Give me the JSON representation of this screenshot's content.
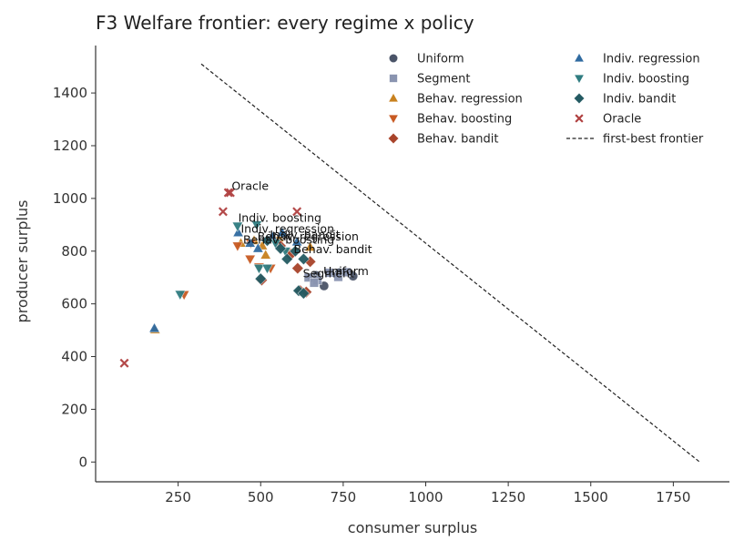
{
  "chart_data": {
    "type": "scatter",
    "title": "F3  Welfare frontier: every regime x policy",
    "xlabel": "consumer surplus",
    "ylabel": "producer surplus",
    "xlim": [
      0,
      1920
    ],
    "ylim": [
      -75,
      1580
    ],
    "xticks": [
      250,
      500,
      750,
      1000,
      1250,
      1500,
      1750
    ],
    "yticks": [
      0,
      200,
      400,
      600,
      800,
      1000,
      1200,
      1400
    ],
    "grid": false,
    "legend_position": "top-right",
    "series": [
      {
        "name": "Uniform",
        "marker": "circle",
        "color": "#4a5468",
        "points": [
          [
            692,
            668
          ],
          [
            738,
            718
          ],
          [
            780,
            705
          ],
          [
            668,
            708
          ],
          [
            655,
            700
          ]
        ]
      },
      {
        "name": "Segment",
        "marker": "square",
        "color": "#8a94b0",
        "points": [
          [
            645,
            700
          ],
          [
            672,
            690
          ],
          [
            708,
            718
          ],
          [
            735,
            702
          ],
          [
            760,
            720
          ],
          [
            662,
            680
          ]
        ]
      },
      {
        "name": "Behav. regression",
        "marker": "triangle-up",
        "color": "#c8811e",
        "points": [
          [
            180,
            502
          ],
          [
            440,
            830
          ],
          [
            480,
            840
          ],
          [
            505,
            820
          ],
          [
            515,
            785
          ],
          [
            650,
            815
          ],
          [
            555,
            850
          ]
        ]
      },
      {
        "name": "Behav. boosting",
        "marker": "triangle-down",
        "color": "#c85a22",
        "points": [
          [
            268,
            635
          ],
          [
            430,
            820
          ],
          [
            468,
            770
          ],
          [
            495,
            740
          ],
          [
            530,
            735
          ],
          [
            470,
            830
          ],
          [
            585,
            795
          ]
        ]
      },
      {
        "name": "Behav. bandit",
        "marker": "diamond",
        "color": "#a8432a",
        "points": [
          [
            503,
            690
          ],
          [
            612,
            735
          ],
          [
            620,
            650
          ],
          [
            638,
            645
          ],
          [
            650,
            760
          ],
          [
            560,
            820
          ],
          [
            590,
            785
          ]
        ]
      },
      {
        "name": "Indiv. regression",
        "marker": "triangle-up",
        "color": "#2f6aa0",
        "points": [
          [
            178,
            507
          ],
          [
            432,
            870
          ],
          [
            468,
            830
          ],
          [
            492,
            810
          ],
          [
            535,
            855
          ],
          [
            565,
            870
          ],
          [
            610,
            835
          ]
        ]
      },
      {
        "name": "Indiv. boosting",
        "marker": "triangle-down",
        "color": "#2f7c80",
        "points": [
          [
            256,
            636
          ],
          [
            430,
            895
          ],
          [
            495,
            735
          ],
          [
            520,
            735
          ],
          [
            488,
            900
          ],
          [
            545,
            830
          ],
          [
            575,
            800
          ]
        ]
      },
      {
        "name": "Indiv. bandit",
        "marker": "diamond",
        "color": "#235a62",
        "points": [
          [
            500,
            695
          ],
          [
            520,
            840
          ],
          [
            560,
            810
          ],
          [
            580,
            770
          ],
          [
            605,
            800
          ],
          [
            630,
            770
          ],
          [
            615,
            650
          ],
          [
            630,
            640
          ]
        ]
      },
      {
        "name": "Oracle",
        "marker": "x",
        "color": "#b04040",
        "points": [
          [
            87,
            375
          ],
          [
            386,
            950
          ],
          [
            402,
            1022
          ],
          [
            408,
            1022
          ],
          [
            610,
            950
          ]
        ]
      }
    ],
    "frontier": {
      "name": "first-best frontier",
      "style": "dashed",
      "color": "#222222",
      "points": [
        [
          320,
          1510
        ],
        [
          1830,
          0
        ]
      ]
    },
    "annotations": [
      {
        "text": "Oracle",
        "x": 412,
        "y": 1032
      },
      {
        "text": "Indiv. boosting",
        "x": 432,
        "y": 912
      },
      {
        "text": "Indiv. regression",
        "x": 440,
        "y": 870
      },
      {
        "text": "Indiv. bandit",
        "x": 528,
        "y": 848
      },
      {
        "text": "Behav. regression",
        "x": 490,
        "y": 840
      },
      {
        "text": "Behav. boosting",
        "x": 447,
        "y": 828
      },
      {
        "text": "Behav. bandit",
        "x": 600,
        "y": 792
      },
      {
        "text": "Uniform",
        "x": 690,
        "y": 710
      },
      {
        "text": "Segment",
        "x": 628,
        "y": 700
      }
    ]
  }
}
